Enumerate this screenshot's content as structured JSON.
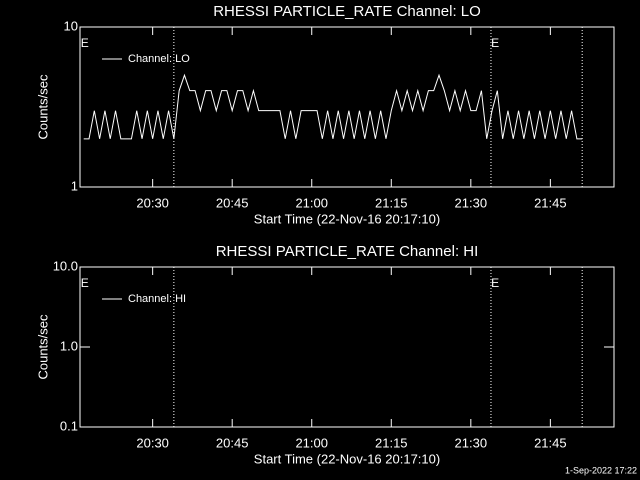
{
  "chart_data": [
    {
      "type": "line",
      "title": "RHESSI PARTICLE_RATE Channel: LO",
      "xlabel": "Start Time (22-Nov-16 20:17:10)",
      "ylabel": "Counts/sec",
      "xlim": [
        1216.3,
        1317
      ],
      "xticks": [
        {
          "value": 1230,
          "label": "20:30"
        },
        {
          "value": 1245,
          "label": "20:45"
        },
        {
          "value": 1260,
          "label": "21:00"
        },
        {
          "value": 1275,
          "label": "21:15"
        },
        {
          "value": 1290,
          "label": "21:30"
        },
        {
          "value": 1305,
          "label": "21:45"
        }
      ],
      "ylim": [
        1,
        10
      ],
      "yticks": [
        1,
        10
      ],
      "log_y": true,
      "legend": "upper left",
      "vlines": [
        1234,
        1293.8,
        1311
      ],
      "annotations": [
        {
          "x": 1217,
          "text": "E"
        },
        {
          "x": 1294.4,
          "text": "E"
        }
      ],
      "series": [
        {
          "name": "Channel: LO",
          "color": "#ffffff",
          "x": [
            1217,
            1218,
            1219,
            1220,
            1221,
            1222,
            1223,
            1224,
            1225,
            1226,
            1227,
            1228,
            1229,
            1230,
            1231,
            1232,
            1233,
            1234,
            1235,
            1236,
            1237,
            1238,
            1239,
            1240,
            1241,
            1242,
            1243,
            1244,
            1245,
            1246,
            1247,
            1248,
            1249,
            1250,
            1251,
            1252,
            1253,
            1254,
            1255,
            1256,
            1257,
            1258,
            1259,
            1260,
            1261,
            1262,
            1263,
            1264,
            1265,
            1266,
            1267,
            1268,
            1269,
            1270,
            1271,
            1272,
            1273,
            1274,
            1275,
            1276,
            1277,
            1278,
            1279,
            1280,
            1281,
            1282,
            1283,
            1284,
            1285,
            1286,
            1287,
            1288,
            1289,
            1290,
            1291,
            1292,
            1293,
            1294,
            1295,
            1296,
            1297,
            1298,
            1299,
            1300,
            1301,
            1302,
            1303,
            1304,
            1305,
            1306,
            1307,
            1308,
            1309,
            1310,
            1311
          ],
          "values": [
            2,
            2,
            3,
            2,
            3,
            2,
            3,
            2,
            2,
            2,
            3,
            2,
            3,
            2,
            3,
            2,
            3,
            2,
            4,
            5,
            4,
            4,
            3,
            4,
            4,
            3,
            4,
            4,
            3,
            4,
            4,
            3,
            4,
            3,
            3,
            3,
            3,
            3,
            2,
            3,
            2,
            3,
            3,
            3,
            3,
            2,
            3,
            2,
            3,
            2,
            3,
            2,
            3,
            2,
            3,
            2,
            3,
            2,
            3,
            4,
            3,
            4,
            3,
            4,
            3,
            4,
            4,
            5,
            4,
            3,
            4,
            3,
            4,
            3,
            3,
            4,
            2,
            3,
            4,
            2,
            3,
            2,
            3,
            2,
            3,
            2,
            3,
            2,
            3,
            2,
            3,
            2,
            3,
            2,
            2
          ]
        }
      ]
    },
    {
      "type": "line",
      "title": "RHESSI PARTICLE_RATE Channel: HI",
      "xlabel": "Start Time (22-Nov-16 20:17:10)",
      "ylabel": "Counts/sec",
      "xlim": [
        1216.3,
        1317
      ],
      "xticks": [
        {
          "value": 1230,
          "label": "20:30"
        },
        {
          "value": 1245,
          "label": "20:45"
        },
        {
          "value": 1260,
          "label": "21:00"
        },
        {
          "value": 1275,
          "label": "21:15"
        },
        {
          "value": 1290,
          "label": "21:30"
        },
        {
          "value": 1305,
          "label": "21:45"
        }
      ],
      "ylim": [
        0.1,
        10
      ],
      "yticks": [
        0.1,
        {
          "value": 1,
          "label": "1.0"
        },
        {
          "value": 10,
          "label": "10.0"
        }
      ],
      "log_y": true,
      "legend": "upper left",
      "vlines": [
        1234,
        1293.8,
        1311
      ],
      "annotations": [
        {
          "x": 1217,
          "text": "E"
        },
        {
          "x": 1294.4,
          "text": "E"
        }
      ],
      "series": [
        {
          "name": "Channel: HI",
          "color": "#ffffff",
          "x": [],
          "values": []
        }
      ]
    }
  ],
  "footer": "1-Sep-2022 17:22"
}
